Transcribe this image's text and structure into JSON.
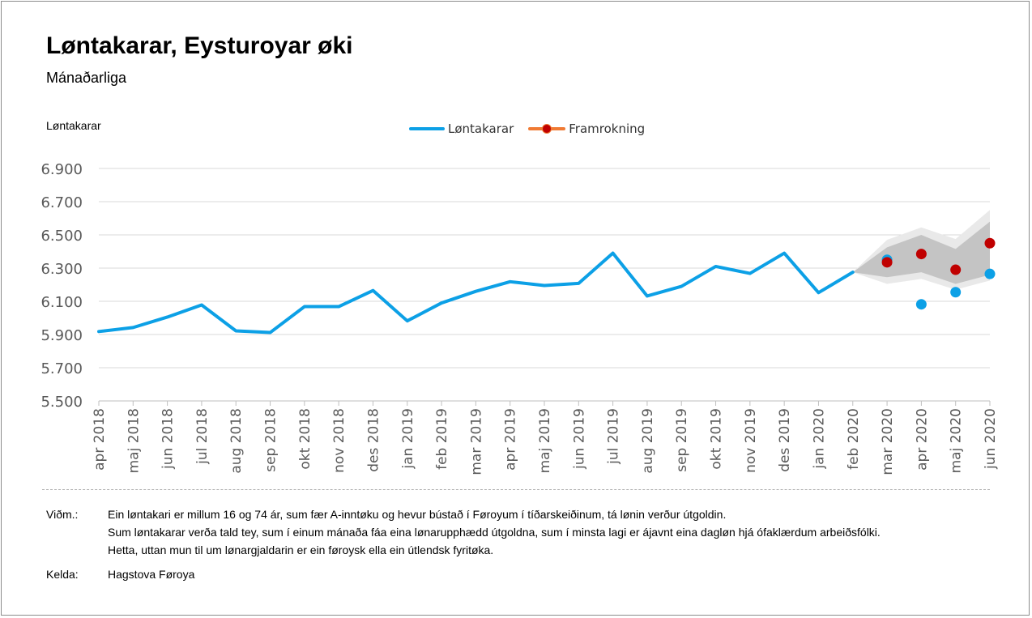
{
  "header": {
    "title": "Løntakarar, Eysturoyar øki",
    "subtitle": "Mánaðarliga",
    "y_axis_label": "Løntakarar"
  },
  "legend": {
    "items": [
      {
        "label": "Løntakarar",
        "color": "#0ca0e6"
      },
      {
        "label": "Framrokning",
        "color": "#c00000",
        "line_color": "#f07a33"
      }
    ]
  },
  "chart_data": {
    "type": "line",
    "categories": [
      "apr 2018",
      "maj 2018",
      "jun 2018",
      "jul 2018",
      "aug 2018",
      "sep 2018",
      "okt 2018",
      "nov 2018",
      "des 2018",
      "jan 2019",
      "feb 2019",
      "mar 2019",
      "apr 2019",
      "maj 2019",
      "jun 2019",
      "jul 2019",
      "aug 2019",
      "sep 2019",
      "okt 2019",
      "nov 2019",
      "des 2019",
      "jan 2020",
      "feb 2020",
      "mar 2020",
      "apr 2020",
      "maj 2020",
      "jun 2020"
    ],
    "series": [
      {
        "name": "Løntakarar",
        "color": "#0ca0e6",
        "values": [
          5918,
          5942,
          6005,
          6078,
          5922,
          5912,
          6068,
          6068,
          6165,
          5982,
          6090,
          6160,
          6218,
          6195,
          6208,
          6390,
          6132,
          6190,
          6310,
          6268,
          6390,
          6152,
          6275,
          null,
          null,
          null,
          null
        ],
        "extra_points": [
          {
            "category": "mar 2020",
            "value": 6350
          },
          {
            "category": "apr 2020",
            "value": 6082
          },
          {
            "category": "maj 2020",
            "value": 6155
          },
          {
            "category": "jun 2020",
            "value": 6265
          }
        ]
      },
      {
        "name": "Framrokning",
        "color": "#c00000",
        "points": [
          {
            "category": "mar 2020",
            "value": 6335
          },
          {
            "category": "apr 2020",
            "value": 6385
          },
          {
            "category": "maj 2020",
            "value": 6290
          },
          {
            "category": "jun 2020",
            "value": 6450
          }
        ]
      }
    ],
    "forecast_bands": {
      "categories": [
        "feb 2020",
        "mar 2020",
        "apr 2020",
        "maj 2020",
        "jun 2020"
      ],
      "outer_lower": [
        6275,
        6205,
        6235,
        6170,
        6225
      ],
      "outer_upper": [
        6275,
        6470,
        6545,
        6475,
        6650
      ],
      "inner_lower": [
        6275,
        6245,
        6275,
        6205,
        6260
      ],
      "inner_upper": [
        6275,
        6425,
        6500,
        6415,
        6580
      ],
      "outer_color": "#e9e9e9",
      "inner_color": "#c4c4c4"
    },
    "y_ticks": [
      "6.900",
      "6.700",
      "6.500",
      "6.300",
      "6.100",
      "5.900",
      "5.700",
      "5.500"
    ],
    "y_tick_values": [
      6900,
      6700,
      6500,
      6300,
      6100,
      5900,
      5700,
      5500
    ],
    "ylim": [
      5500,
      6900
    ],
    "grid": true,
    "legend_position": "top-center"
  },
  "notes": {
    "label": "Viðm.:",
    "lines": [
      "Ein løntakari er millum 16 og 74 ár, sum fær A-inntøku og hevur bústað í Føroyum í tíðarskeiðinum, tá lønin verður útgoldin.",
      "Sum løntakarar verða tald tey, sum í einum mánaða fáa eina lønarupphædd útgoldna, sum í minsta lagi er ájavnt eina dagløn hjá ófaklærdum arbeiðsfólki.",
      "Hetta, uttan mun til um lønargjaldarin er ein føroysk ella ein útlendsk fyritøka."
    ],
    "source_label": "Kelda:",
    "source_value": "Hagstova Føroya"
  }
}
